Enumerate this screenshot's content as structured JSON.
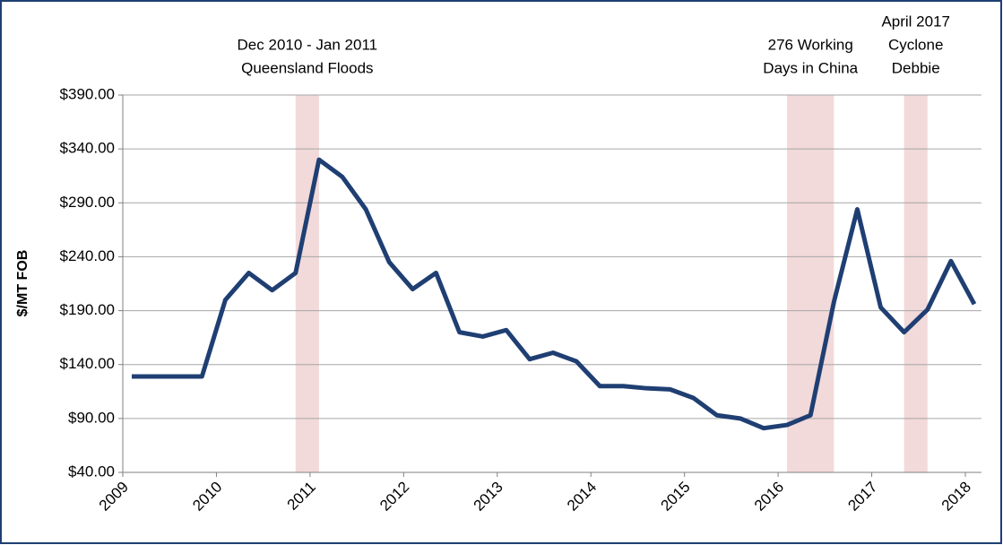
{
  "chart_data": {
    "type": "line",
    "y_label": "$/MT FOB",
    "categories": [
      "2009",
      null,
      null,
      null,
      "2010",
      null,
      null,
      null,
      "2011",
      null,
      null,
      null,
      "2012",
      null,
      null,
      null,
      "2013",
      null,
      null,
      null,
      "2014",
      null,
      null,
      null,
      "2015",
      null,
      null,
      null,
      "2016",
      null,
      null,
      null,
      "2017",
      null,
      null,
      null,
      "2018"
    ],
    "series": [
      {
        "color": "#1f3f73",
        "values": [
          129,
          129,
          129,
          129,
          200,
          225,
          209,
          225,
          330,
          314,
          284,
          235,
          210,
          225,
          170,
          166,
          172,
          145,
          151,
          143,
          120,
          120,
          118,
          117,
          109,
          93,
          90,
          81,
          84,
          93,
          198,
          284,
          193,
          170,
          191,
          236,
          196
        ]
      }
    ],
    "ylim": [
      40,
      390
    ],
    "yticks": [
      {
        "value": 40,
        "label": "$40.00"
      },
      {
        "value": 90,
        "label": "$90.00"
      },
      {
        "value": 140,
        "label": "$140.00"
      },
      {
        "value": 190,
        "label": "$190.00"
      },
      {
        "value": 240,
        "label": "$240.00"
      },
      {
        "value": 290,
        "label": "$290.00"
      },
      {
        "value": 340,
        "label": "$340.00"
      },
      {
        "value": 390,
        "label": "$390.00"
      }
    ],
    "grid": true,
    "band_color": "#f2d9da",
    "annotations": [
      {
        "span": [
          7,
          8
        ],
        "lines": [
          "Dec 2010 - Jan 2011",
          "Queensland Floods"
        ]
      },
      {
        "span": [
          28,
          30
        ],
        "lines": [
          "276 Working",
          "Days in China"
        ]
      },
      {
        "span": [
          33,
          34
        ],
        "lines": [
          "April 2017",
          "Cyclone",
          "Debbie"
        ]
      }
    ]
  }
}
